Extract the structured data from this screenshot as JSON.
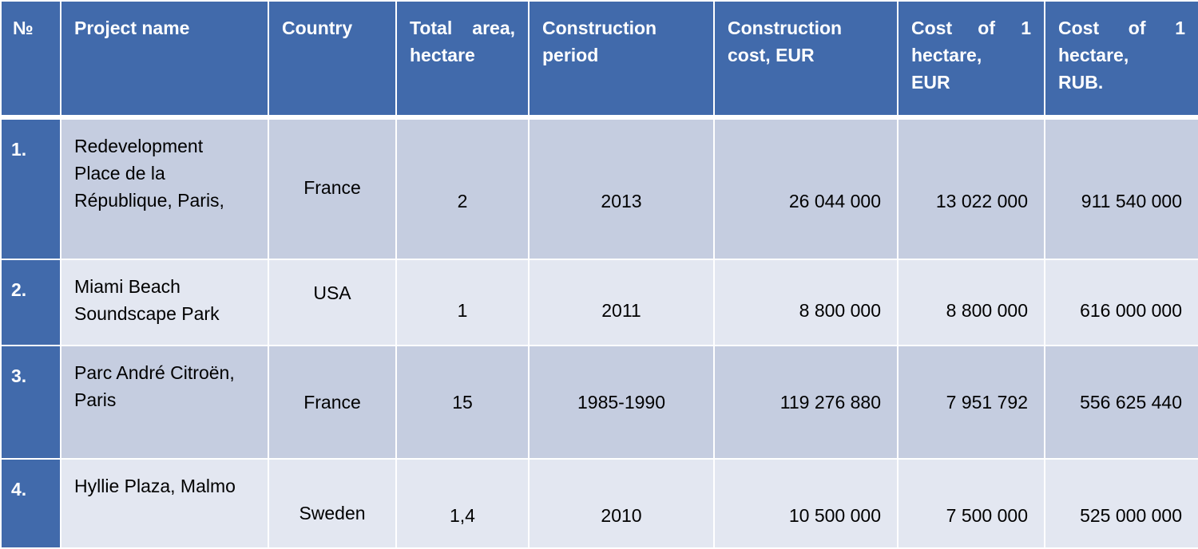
{
  "headers": {
    "num": "№",
    "project_name": "Project name",
    "country": "Country",
    "total_area": [
      "Total area,",
      "hectare"
    ],
    "construction_period": [
      "Construction",
      "period"
    ],
    "construction_cost": [
      "Construction",
      "cost, EUR"
    ],
    "cost_eur": [
      "Cost of 1",
      "hectare,",
      "EUR"
    ],
    "cost_rub": [
      "Cost of 1",
      "hectare,",
      "RUB."
    ]
  },
  "rows": [
    {
      "num": "1.",
      "name": [
        "Redevelopment",
        "Place de la",
        "République, Paris,"
      ],
      "country": "France",
      "area": "2",
      "period": "2013",
      "cost": "26 044 000",
      "cost_eur": "13 022 000",
      "cost_rub": "911 540 000"
    },
    {
      "num": "2.",
      "name": [
        "Miami Beach",
        "Soundscape Park"
      ],
      "country": "USA",
      "area": "1",
      "period": "2011",
      "cost": "8 800 000",
      "cost_eur": "8 800 000",
      "cost_rub": "616 000 000"
    },
    {
      "num": "3.",
      "name": [
        "Parc André Citroën,",
        "Paris"
      ],
      "country": "France",
      "area": "15",
      "period": "1985-1990",
      "cost": "119 276 880",
      "cost_eur": "7 951 792",
      "cost_rub": "556 625 440"
    },
    {
      "num": "4.",
      "name": [
        "Hyllie Plaza, Malmo"
      ],
      "country": "Sweden",
      "area": "1,4",
      "period": "2010",
      "cost": "10 500 000",
      "cost_eur": "7 500 000",
      "cost_rub": "525 000 000"
    }
  ]
}
